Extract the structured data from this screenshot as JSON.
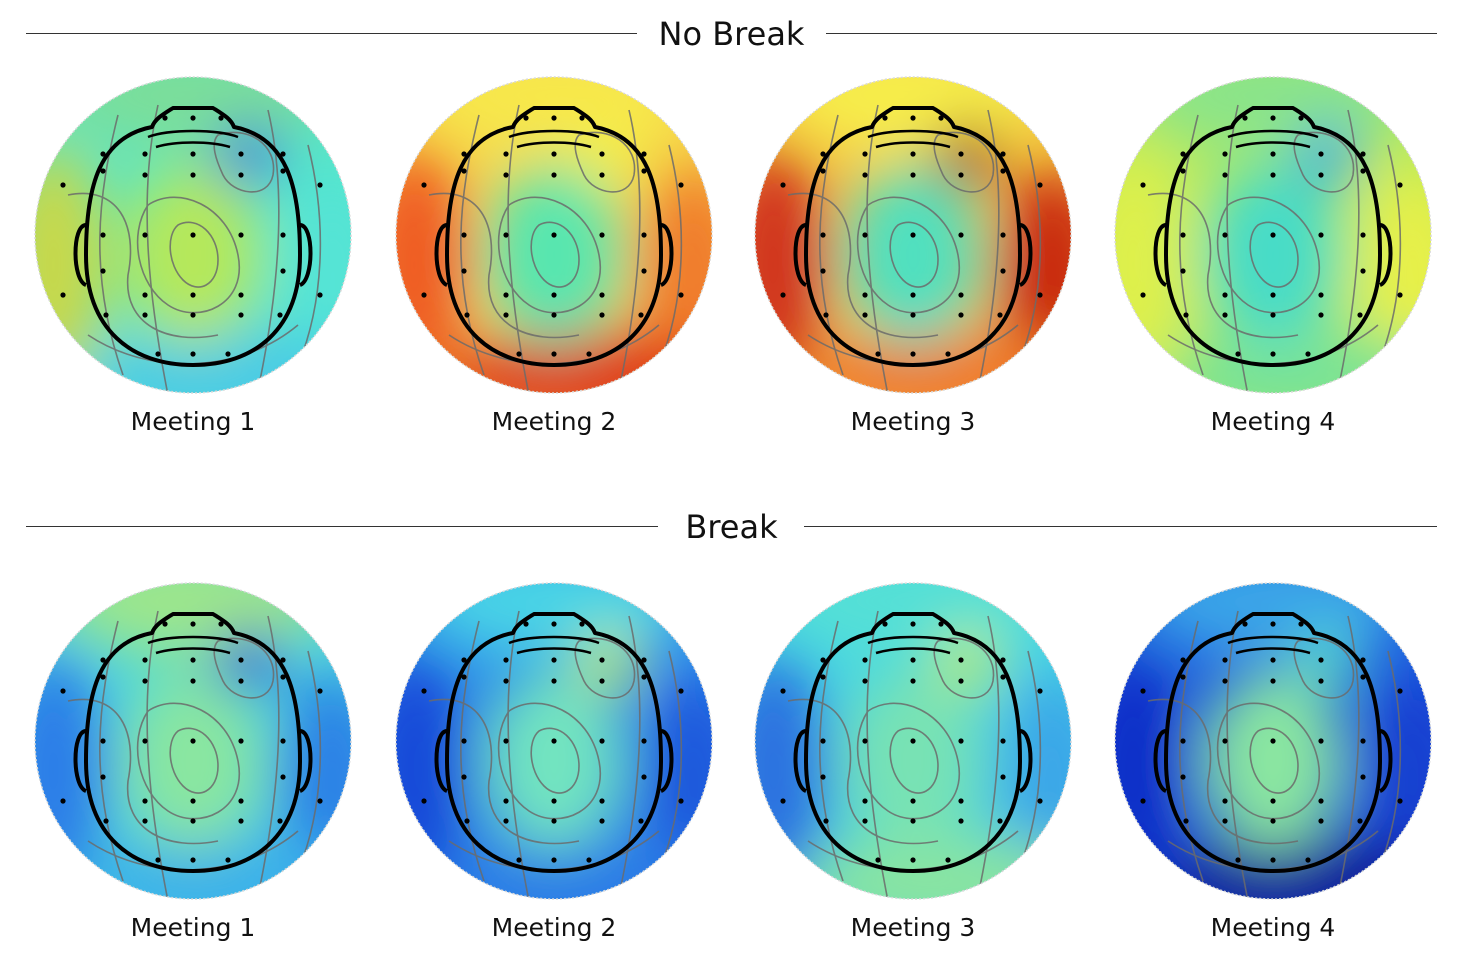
{
  "sections": [
    {
      "title": "No Break",
      "maps": [
        {
          "label": "Meeting 1",
          "palette": {
            "base": "#55e6c8",
            "center": "#b6e85a",
            "top": "#7cde9a",
            "left": "#c9d84a",
            "right": "#54e4d6",
            "lower": "#48cbe6",
            "accent": "#2a6fe0"
          }
        },
        {
          "label": "Meeting 2",
          "palette": {
            "base": "#f6d44a",
            "center": "#56e6b0",
            "top": "#f7e84c",
            "left": "#ef5a20",
            "right": "#f07a2c",
            "lower": "#e03a18",
            "accent": "#f3f246"
          }
        },
        {
          "label": "Meeting 3",
          "palette": {
            "base": "#f8c440",
            "center": "#4fe0c0",
            "top": "#f6ee4c",
            "left": "#d0301a",
            "right": "#c8280f",
            "lower": "#f07a2c",
            "accent": "#a01a10"
          }
        },
        {
          "label": "Meeting 4",
          "palette": {
            "base": "#b6ea5a",
            "center": "#46dcc8",
            "top": "#8ae48a",
            "left": "#dff04c",
            "right": "#e8f04a",
            "lower": "#7ae394",
            "accent": "#3aa6e8"
          }
        }
      ]
    },
    {
      "title": "Break",
      "maps": [
        {
          "label": "Meeting 1",
          "palette": {
            "base": "#48d6e0",
            "center": "#8ae6a0",
            "top": "#9ee68a",
            "left": "#2a7ce8",
            "right": "#2a80e6",
            "lower": "#3ab0ea",
            "accent": "#1a3ad8"
          }
        },
        {
          "label": "Meeting 2",
          "palette": {
            "base": "#2c8cec",
            "center": "#72e4c0",
            "top": "#4ad4e6",
            "left": "#1448d8",
            "right": "#1a58dc",
            "lower": "#2a7ce6",
            "accent": "#c6ec5a"
          }
        },
        {
          "label": "Meeting 3",
          "palette": {
            "base": "#46d6e4",
            "center": "#78e2b4",
            "top": "#54e0d6",
            "left": "#2a6fe0",
            "right": "#3aa6e8",
            "lower": "#8ae4a0",
            "accent": "#c6ec5a"
          }
        },
        {
          "label": "Meeting 4",
          "palette": {
            "base": "#1c5ae0",
            "center": "#8ae6a0",
            "top": "#3aa6e8",
            "left": "#0c2ec8",
            "right": "#1440d0",
            "lower": "#0a1c9a",
            "accent": "#5ae0c6"
          }
        }
      ]
    }
  ]
}
